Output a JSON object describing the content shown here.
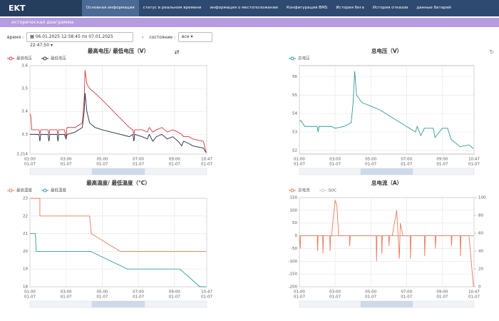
{
  "header": {
    "brand": "EKT",
    "nav": [
      "Основная информация",
      "статус в реальном времени",
      "информация о местоположении",
      "Конфигурация BMS",
      "История бега",
      "История отказов",
      "данные батарей"
    ]
  },
  "panel": {
    "title": "историческая диаграмма",
    "time_label": "время :",
    "time_range": "06.01.2025 12:58:45 по 07.01.2025 22:47:50",
    "state_label": "состояние :",
    "state_value": "все"
  },
  "chart_data": [
    {
      "type": "line",
      "title": "最高电压/ 最低电压（V）",
      "grid": true,
      "xlim": [
        1,
        10.783
      ],
      "xticks": [
        {
          "value": 1,
          "label": "01:00",
          "date": "01-07"
        },
        {
          "value": 3,
          "label": "03:00",
          "date": "01-07"
        },
        {
          "value": 5,
          "label": "05:00",
          "date": "01-07"
        },
        {
          "value": 7,
          "label": "07:00",
          "date": "01-07"
        },
        {
          "value": 9,
          "label": "09:00",
          "date": "01-07"
        },
        {
          "value": 10.783,
          "label": "10:47",
          "date": "01-07"
        }
      ],
      "ylim": [
        3.214,
        3.6
      ],
      "yticks": [
        3.214,
        3.3,
        3.4,
        3.5,
        3.6
      ],
      "series": [
        {
          "name": "最高电压",
          "color": "#d63b3b",
          "x": [
            1.0,
            1.05,
            1.1,
            1.5,
            1.55,
            1.6,
            2.0,
            2.05,
            2.1,
            2.5,
            2.55,
            2.6,
            2.9,
            3.0,
            3.05,
            3.5,
            3.9,
            4.0,
            4.05,
            4.15,
            4.3,
            4.6,
            5.0,
            5.5,
            6.0,
            6.5,
            6.7,
            6.75,
            6.8,
            7.2,
            7.5,
            7.6,
            7.8,
            8.0,
            8.3,
            8.6,
            8.9,
            9.2,
            9.4,
            9.5,
            9.8,
            10.0,
            10.6,
            10.75
          ],
          "values": [
            3.39,
            3.38,
            3.32,
            3.32,
            3.3,
            3.32,
            3.32,
            3.3,
            3.32,
            3.32,
            3.3,
            3.32,
            3.32,
            3.29,
            3.33,
            3.33,
            3.35,
            3.45,
            3.58,
            3.52,
            3.5,
            3.48,
            3.45,
            3.41,
            3.37,
            3.33,
            3.32,
            3.3,
            3.32,
            3.32,
            3.31,
            3.33,
            3.31,
            3.32,
            3.33,
            3.31,
            3.32,
            3.31,
            3.3,
            3.29,
            3.29,
            3.28,
            3.27,
            3.22
          ]
        },
        {
          "name": "最低电压",
          "color": "#1f2d3d",
          "x": [
            1.0,
            1.05,
            1.1,
            1.5,
            1.55,
            1.6,
            2.0,
            2.05,
            2.1,
            2.5,
            2.55,
            2.6,
            2.9,
            3.0,
            3.05,
            3.5,
            3.9,
            4.0,
            4.05,
            4.15,
            4.3,
            4.6,
            5.0,
            5.5,
            6.0,
            6.5,
            6.7,
            6.75,
            6.8,
            7.2,
            7.5,
            7.6,
            7.8,
            8.0,
            8.3,
            8.6,
            8.9,
            9.2,
            9.4,
            9.5,
            9.8,
            10.0,
            10.6,
            10.75
          ],
          "values": [
            3.3,
            3.3,
            3.3,
            3.3,
            3.27,
            3.3,
            3.3,
            3.27,
            3.3,
            3.3,
            3.27,
            3.3,
            3.3,
            3.28,
            3.3,
            3.31,
            3.33,
            3.4,
            3.48,
            3.4,
            3.35,
            3.33,
            3.32,
            3.31,
            3.3,
            3.29,
            3.3,
            3.27,
            3.3,
            3.29,
            3.28,
            3.3,
            3.27,
            3.29,
            3.3,
            3.28,
            3.29,
            3.27,
            3.25,
            3.27,
            3.26,
            3.25,
            3.24,
            3.22
          ]
        }
      ]
    },
    {
      "type": "line",
      "title": "总电压（V）",
      "grid": true,
      "xlim": [
        1,
        10.783
      ],
      "xticks": [
        {
          "value": 1,
          "label": "01:00",
          "date": "01-07"
        },
        {
          "value": 3,
          "label": "03:00",
          "date": "01-07"
        },
        {
          "value": 5,
          "label": "05:00",
          "date": "01-07"
        },
        {
          "value": 7,
          "label": "07:00",
          "date": "01-07"
        },
        {
          "value": 9,
          "label": "09:00",
          "date": "01-07"
        },
        {
          "value": 10.783,
          "label": "10:47",
          "date": "01-07"
        }
      ],
      "ylim": [
        51.8,
        56.6
      ],
      "yticks": [
        52,
        53,
        54,
        55,
        56
      ],
      "series": [
        {
          "name": "总电压",
          "color": "#2e9a9a",
          "x": [
            1.0,
            1.1,
            1.3,
            2.0,
            2.05,
            2.1,
            2.8,
            3.0,
            3.5,
            3.9,
            4.0,
            4.1,
            4.2,
            4.5,
            5.0,
            5.5,
            6.0,
            6.5,
            7.0,
            7.5,
            7.6,
            7.8,
            8.0,
            8.5,
            8.6,
            9.0,
            9.3,
            9.5,
            10.0,
            10.5,
            10.75
          ],
          "values": [
            53.6,
            53.6,
            53.3,
            53.3,
            53.0,
            53.3,
            53.3,
            53.2,
            53.3,
            53.5,
            54.5,
            56.3,
            55.0,
            54.6,
            54.4,
            54.2,
            53.9,
            53.6,
            53.3,
            53.0,
            53.3,
            52.8,
            53.2,
            53.2,
            52.7,
            53.2,
            53.2,
            52.6,
            52.2,
            52.3,
            52.1
          ]
        }
      ]
    },
    {
      "type": "line",
      "title": "最高温度/ 最低温度（°C）",
      "grid": true,
      "xlim": [
        1,
        10.783
      ],
      "xticks": [
        {
          "value": 1,
          "label": "01:00",
          "date": "01-07"
        },
        {
          "value": 3,
          "label": "03:00",
          "date": "01-07"
        },
        {
          "value": 5,
          "label": "05:00",
          "date": "01-07"
        },
        {
          "value": 7,
          "label": "07:00",
          "date": "01-07"
        },
        {
          "value": 9,
          "label": "09:00",
          "date": "01-07"
        },
        {
          "value": 10.783,
          "label": "10:47",
          "date": "01-07"
        }
      ],
      "ylim": [
        18,
        23
      ],
      "yticks": [
        18,
        19,
        20,
        21,
        22,
        23
      ],
      "series": [
        {
          "name": "最高温度",
          "color": "#ec7a5c",
          "x": [
            1.0,
            1.55,
            1.55,
            4.3,
            4.4,
            6.0,
            10.75
          ],
          "values": [
            23,
            23,
            22,
            22,
            21,
            20,
            20
          ]
        },
        {
          "name": "最低温度",
          "color": "#2e9a9a",
          "x": [
            1.0,
            1.3,
            1.35,
            4.35,
            6.4,
            9.3,
            10.4,
            10.75
          ],
          "values": [
            21,
            21,
            20,
            20,
            19,
            19,
            18,
            18
          ]
        }
      ]
    },
    {
      "type": "line",
      "title": "总电流（A）",
      "grid": true,
      "xlim": [
        1,
        10.783
      ],
      "xticks": [
        {
          "value": 1,
          "label": "01:00",
          "date": "01-07"
        },
        {
          "value": 3,
          "label": "03:00",
          "date": "01-07"
        },
        {
          "value": 5,
          "label": "05:00",
          "date": "01-07"
        },
        {
          "value": 7,
          "label": "07:00",
          "date": "01-07"
        },
        {
          "value": 9,
          "label": "09:00",
          "date": "01-07"
        },
        {
          "value": 10.783,
          "label": "10:47",
          "date": "01-07"
        }
      ],
      "ylim": [
        -200,
        150
      ],
      "yticks": [
        -200,
        -150,
        -100,
        -50,
        0,
        50,
        100,
        150
      ],
      "y2lim": [
        0,
        100
      ],
      "y2ticks": [
        0,
        20,
        40,
        60,
        80,
        100
      ],
      "series": [
        {
          "name": "总电流",
          "color": "#ec7a5c",
          "x": [
            1.0,
            1.05,
            1.07,
            2.0,
            2.02,
            2.05,
            2.3,
            2.32,
            2.35,
            2.7,
            2.72,
            2.75,
            2.8,
            3.0,
            3.1,
            3.2,
            3.8,
            3.82,
            3.85,
            5.3,
            5.32,
            5.35,
            5.6,
            5.62,
            5.65,
            6.0,
            6.02,
            6.05,
            6.2,
            6.45,
            6.6,
            6.65,
            6.8,
            7.2,
            7.22,
            7.25,
            8.0,
            8.02,
            8.05,
            8.6,
            8.62,
            8.65,
            9.5,
            9.52,
            9.55,
            10.0,
            10.02,
            10.05,
            10.5,
            10.75
          ],
          "values": [
            0,
            -50,
            0,
            0,
            -60,
            0,
            0,
            -70,
            0,
            0,
            -60,
            0,
            0,
            140,
            120,
            0,
            0,
            -40,
            0,
            0,
            -100,
            0,
            0,
            -70,
            0,
            0,
            -40,
            0,
            0,
            100,
            -90,
            50,
            0,
            0,
            -90,
            0,
            0,
            -80,
            0,
            0,
            -50,
            0,
            0,
            -40,
            0,
            0,
            -80,
            0,
            0,
            -200
          ]
        },
        {
          "name": "SOC",
          "color": "#cccccc",
          "axis": "y2",
          "hidden": true
        }
      ]
    }
  ]
}
